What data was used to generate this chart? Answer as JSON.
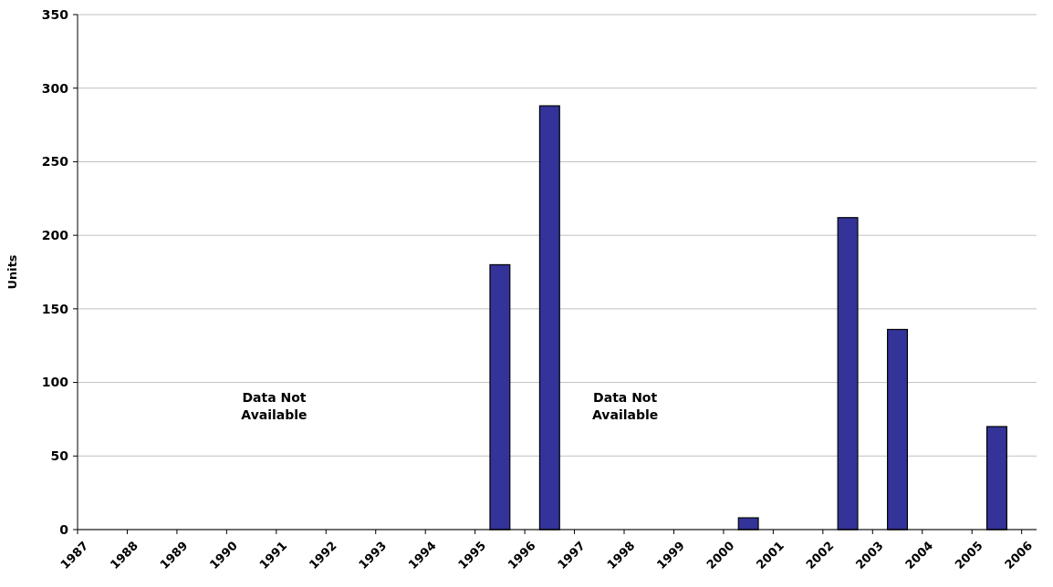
{
  "chart_data": {
    "type": "bar",
    "ylabel": "Units",
    "x": [
      1995.5,
      1996.5,
      2000.5,
      2002.5,
      2003.5,
      2005.5
    ],
    "values": [
      180,
      288,
      8,
      212,
      136,
      70
    ],
    "color": "#333399",
    "xlim": [
      1987,
      2006.3
    ],
    "xticks": [
      1987,
      1988,
      1989,
      1990,
      1991,
      1992,
      1993,
      1994,
      1995,
      1996,
      1997,
      1998,
      1999,
      2000,
      2001,
      2002,
      2003,
      2004,
      2005,
      2006
    ],
    "ylim": [
      0,
      350
    ],
    "yticks": [
      0,
      50,
      100,
      150,
      200,
      250,
      300,
      350
    ],
    "grid": "y",
    "annotations": [
      "Data Not Available",
      "Data Not Available"
    ]
  }
}
